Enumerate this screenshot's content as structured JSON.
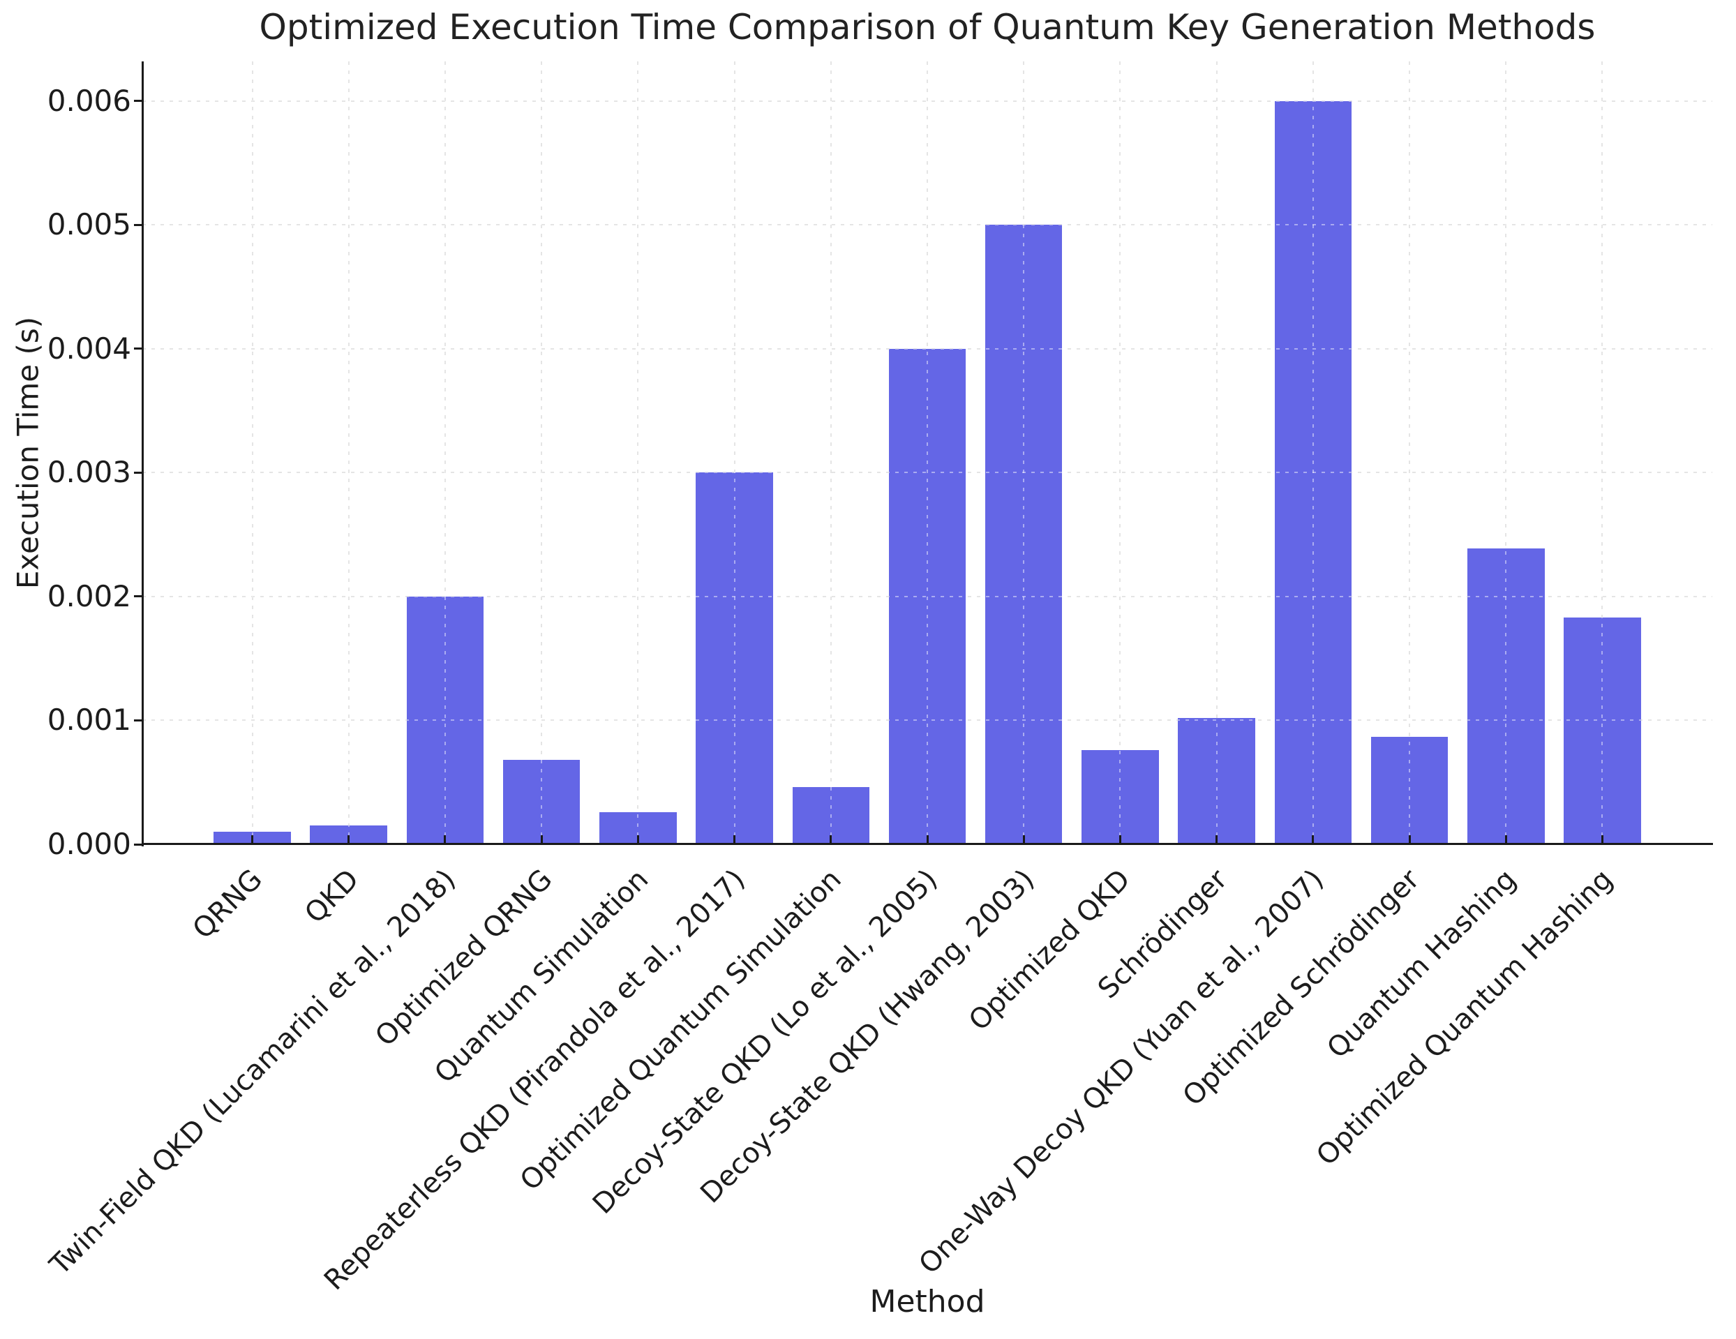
{
  "chart_data": {
    "type": "bar",
    "title": "Optimized Execution Time Comparison of Quantum Key Generation Methods",
    "xlabel": "Method",
    "ylabel": "Execution Time (s)",
    "categories": [
      "QRNG",
      "QKD",
      "Twin-Field QKD (Lucamarini et al., 2018)",
      "Optimized QRNG",
      "Quantum Simulation",
      "Repeaterless QKD (Pirandola et al., 2017)",
      "Optimized Quantum Simulation",
      "Decoy-State QKD (Lo et al., 2005)",
      "Decoy-State QKD (Hwang, 2003)",
      "Optimized QKD",
      "Schrödinger",
      "One-Way Decoy QKD (Yuan et al., 2007)",
      "Optimized Schrödinger",
      "Quantum Hashing",
      "Optimized Quantum Hashing"
    ],
    "values": [
      0.0001,
      0.00015,
      0.002,
      0.00068,
      0.00026,
      0.003,
      0.00046,
      0.004,
      0.005,
      0.00076,
      0.00102,
      0.006,
      0.00087,
      0.00239,
      0.00183
    ],
    "ylim": [
      0,
      0.00632
    ],
    "yticks": {
      "values": [
        0,
        0.001,
        0.002,
        0.003,
        0.004,
        0.005,
        0.006
      ],
      "labels": [
        "0.000",
        "0.001",
        "0.002",
        "0.003",
        "0.004",
        "0.005",
        "0.006"
      ]
    },
    "bar_color": "#6466e6",
    "grid": {
      "style": "dashed",
      "color": "#cfcfcf",
      "x": true,
      "y": true
    },
    "legend": "none"
  }
}
